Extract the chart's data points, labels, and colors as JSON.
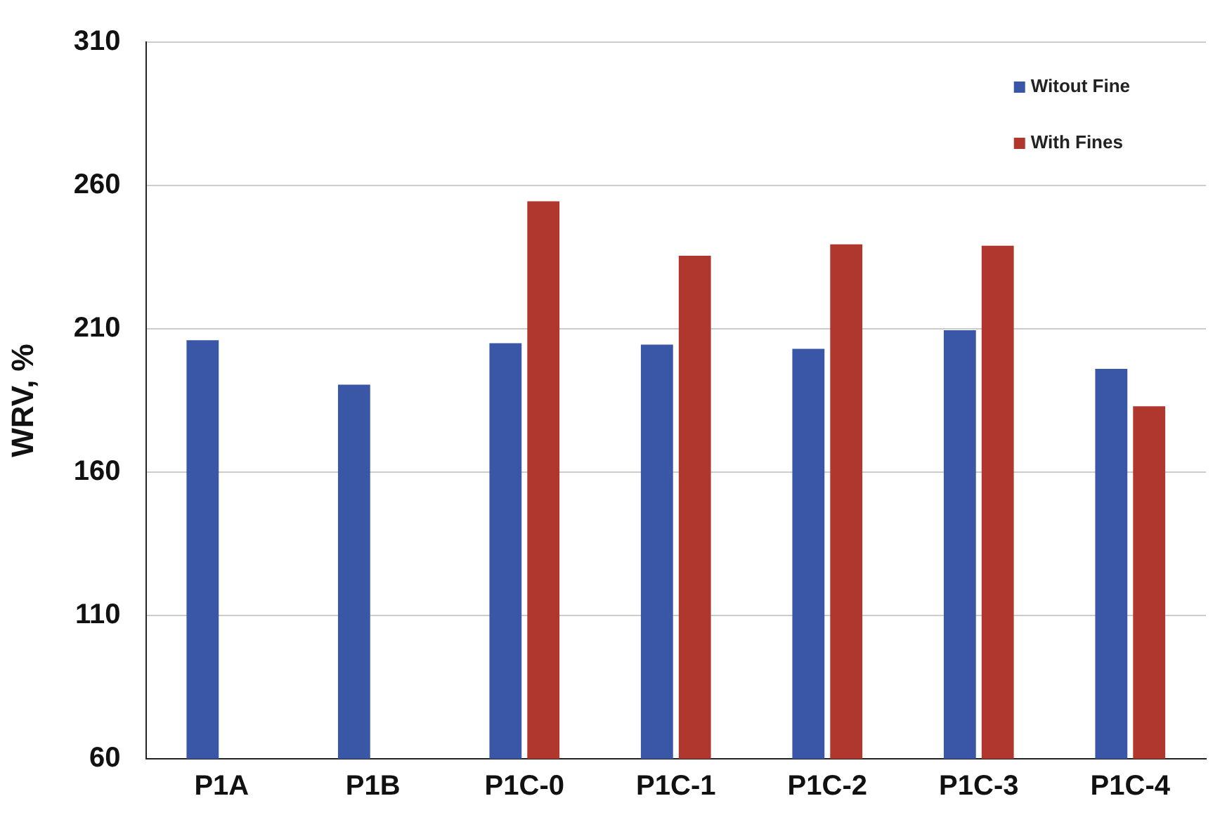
{
  "chart_data": {
    "type": "bar",
    "ylabel": "WRV, %",
    "categories": [
      "P1A",
      "P1B",
      "P1C-0",
      "P1C-1",
      "P1C-2",
      "P1C-3",
      "P1C-4"
    ],
    "series": [
      {
        "name": "Witout Fine",
        "color": "#3a56a6",
        "values": [
          206,
          190.5,
          205,
          204.5,
          203,
          209.5,
          196
        ]
      },
      {
        "name": "With Fines",
        "color": "#b0372d",
        "values": [
          null,
          null,
          254.5,
          235.5,
          239.5,
          239,
          183
        ]
      }
    ],
    "ylim": [
      60,
      310
    ],
    "yticks": [
      60,
      110,
      160,
      210,
      260,
      310
    ],
    "grid": "y",
    "legend": "top right"
  }
}
